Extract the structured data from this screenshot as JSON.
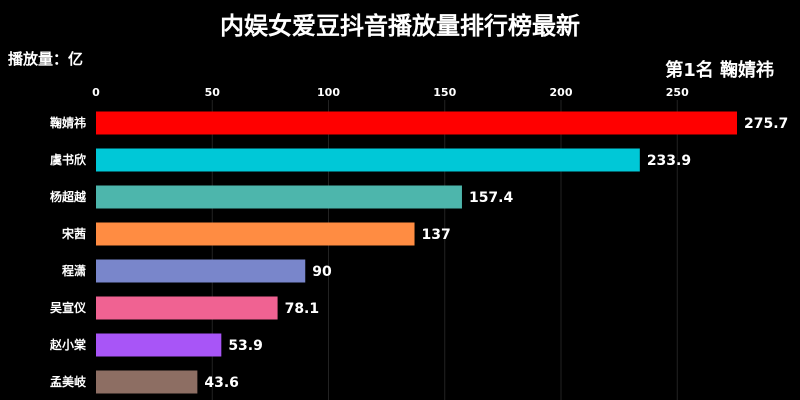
{
  "title": "内娱女爱豆抖音播放量排行榜最新",
  "unit_label": "播放量：亿",
  "rank_label": "第1名 鞠婧祎",
  "chart_data": {
    "type": "bar",
    "orientation": "horizontal",
    "title": "内娱女爱豆抖音播放量排行榜最新",
    "xlabel": "",
    "ylabel": "",
    "xlim": [
      0,
      300
    ],
    "x_ticks": [
      0,
      50,
      100,
      150,
      200,
      250
    ],
    "grid": true,
    "categories": [
      "鞠婧祎",
      "虞书欣",
      "杨超越",
      "宋茜",
      "程潇",
      "吴宣仪",
      "赵小棠",
      "孟美岐"
    ],
    "values": [
      275.7,
      233.9,
      157.4,
      137,
      90,
      78.1,
      53.9,
      43.6
    ],
    "value_labels": [
      "275.7",
      "233.9",
      "157.4",
      "137",
      "90",
      "78.1",
      "53.9",
      "43.6"
    ],
    "colors": [
      "#ff0000",
      "#00c8d7",
      "#4db6ac",
      "#ff8c42",
      "#7986cb",
      "#f06292",
      "#a855f7",
      "#8d6e63"
    ]
  }
}
